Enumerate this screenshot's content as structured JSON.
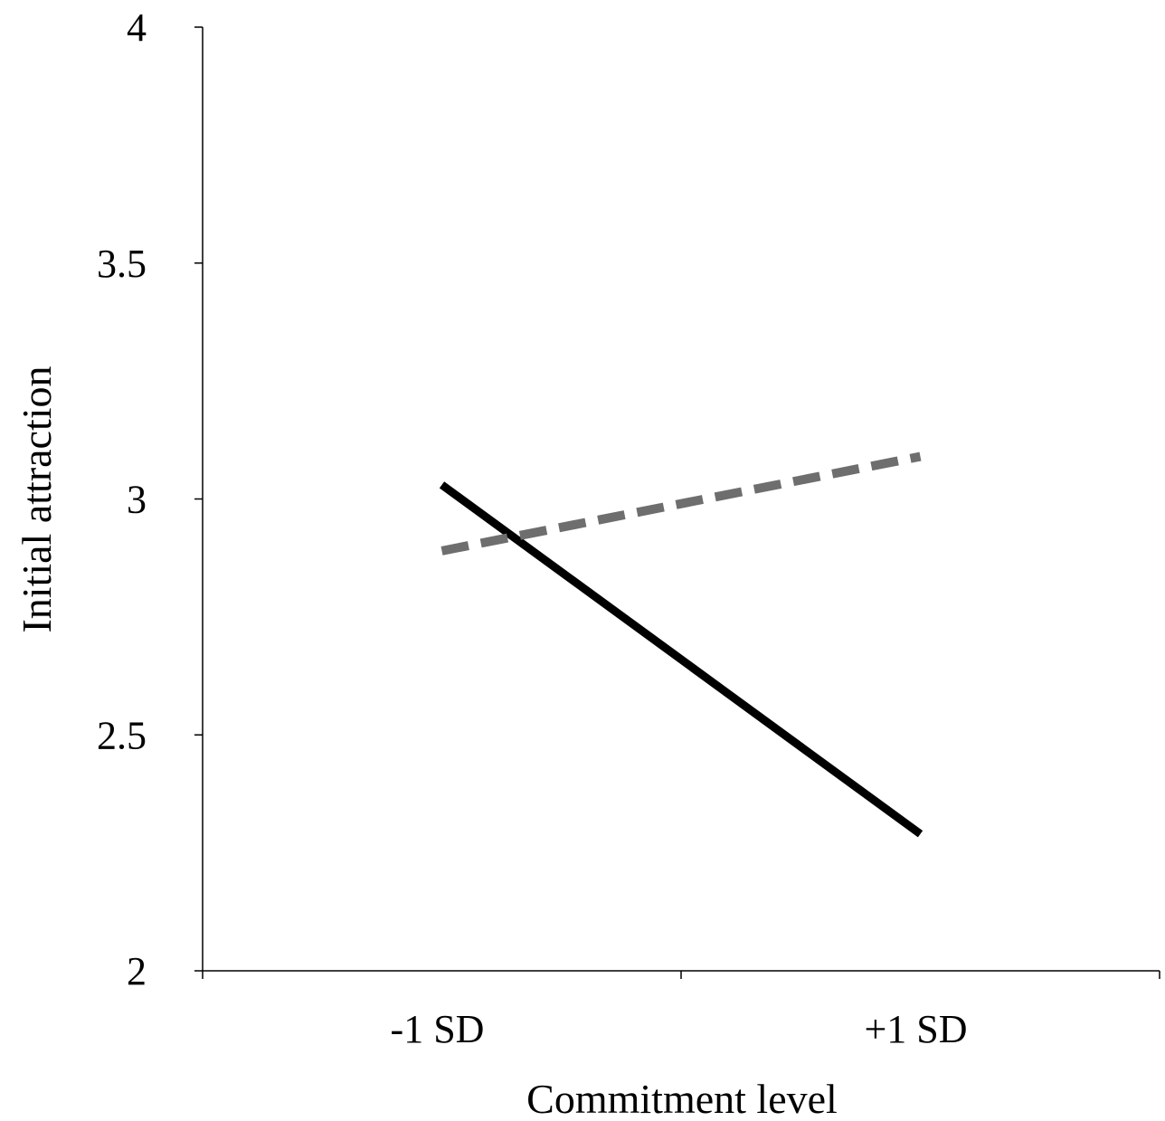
{
  "chart_data": {
    "type": "line",
    "title": "",
    "xlabel": "Commitment level",
    "ylabel": "Initial attraction",
    "categories": [
      "-1 SD",
      "+1 SD"
    ],
    "ylim": [
      2,
      4
    ],
    "yticks": [
      "2",
      "2.5",
      "3",
      "3.5",
      "4"
    ],
    "grid": false,
    "legend": "none",
    "series": [
      {
        "values": [
          3.03,
          2.29
        ],
        "line_style": "solid",
        "color": "#000000"
      },
      {
        "values": [
          2.89,
          3.09
        ],
        "line_style": "dashed",
        "color": "#6e6e6e"
      }
    ]
  }
}
